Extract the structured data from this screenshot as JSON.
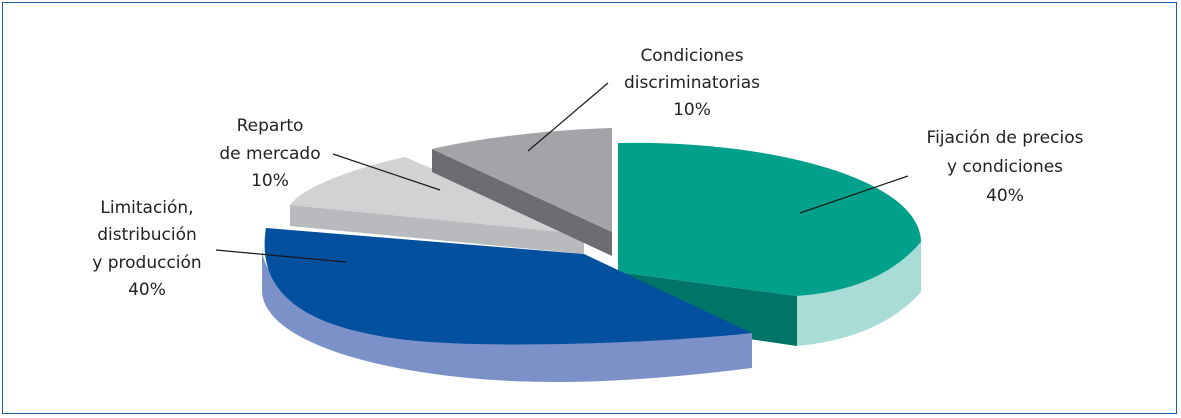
{
  "chart_data": {
    "type": "pie",
    "style": "3d-exploded",
    "title": "",
    "slices": [
      {
        "label": "Fijación de precios y condiciones",
        "value": 40,
        "text": "40%",
        "color": "#00a08a",
        "side": "#007466",
        "outer": "#a9dcd6"
      },
      {
        "label": "Limitación, distribución y producción",
        "value": 40,
        "text": "40%",
        "color": "#02509e",
        "side": "#013f7e",
        "outer": "#7d91c9"
      },
      {
        "label": "Reparto de mercado",
        "value": 10,
        "text": "10%",
        "color": "#d1d2d4",
        "side": "#a9aaad",
        "outer": "#b9babd"
      },
      {
        "label": "Condiciones discriminatorias",
        "value": 10,
        "text": "10%",
        "color": "#a2a4a7",
        "side": "#6b6d70",
        "outer": "#8a8c8f"
      }
    ]
  },
  "labels": {
    "fijacion": {
      "line1": "Fijación de precios",
      "line2": "y condiciones",
      "pct": "40%"
    },
    "limitacion": {
      "line1": "Limitación,",
      "line2": "distribución",
      "line3": "y producción",
      "pct": "40%"
    },
    "reparto": {
      "line1": "Reparto",
      "line2": "de mercado",
      "pct": "10%"
    },
    "condiciones": {
      "line1": "Condiciones",
      "line2": "discriminatorias",
      "pct": "10%"
    }
  }
}
